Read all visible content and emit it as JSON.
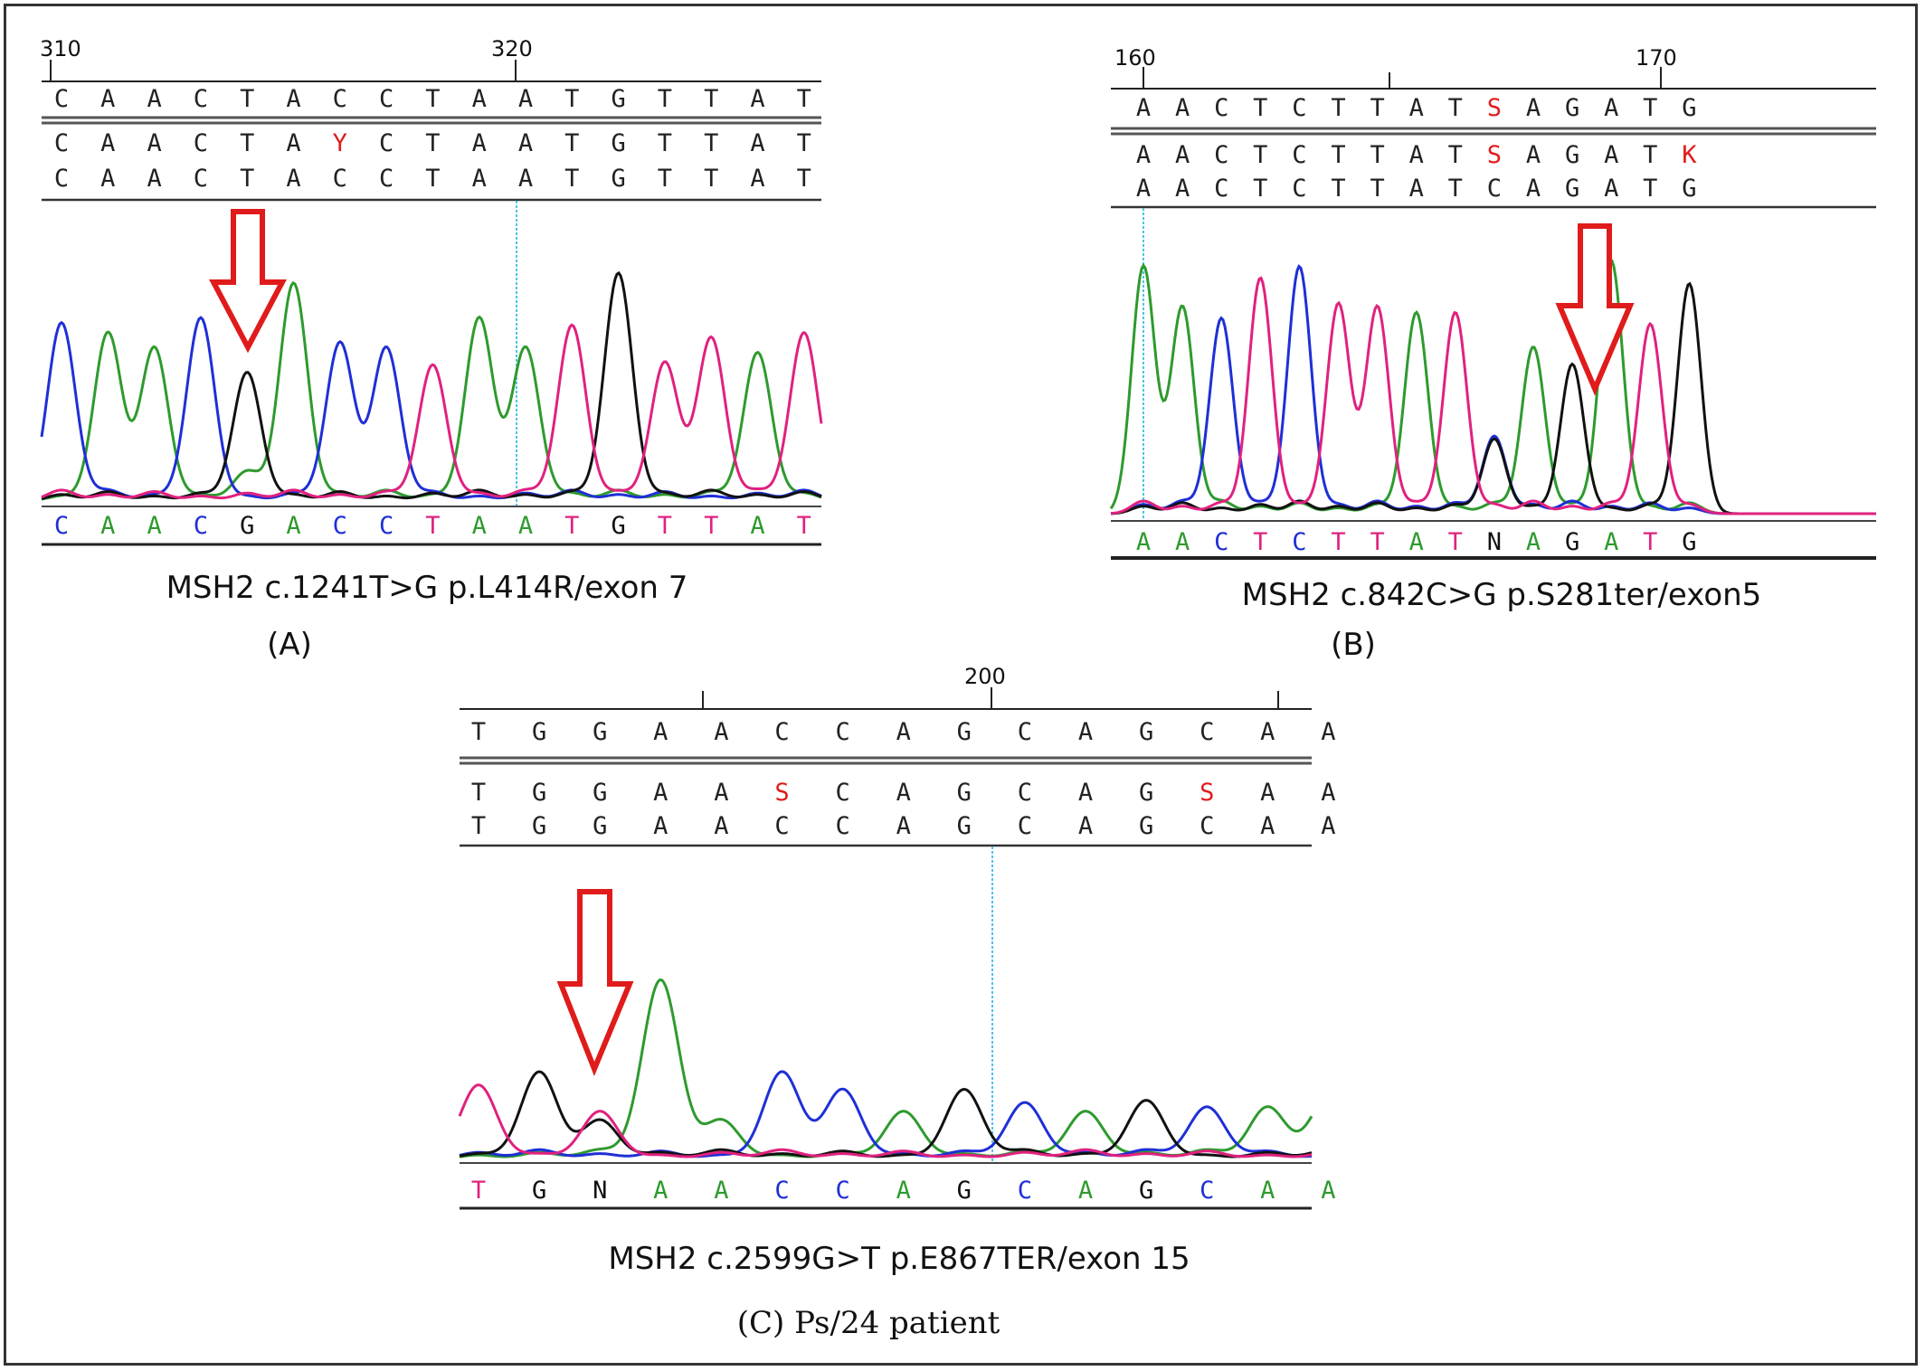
{
  "colors": {
    "A": "#2e9a2e",
    "C": "#1f2fd6",
    "G": "#111111",
    "T": "#e0217f",
    "N": "#111111",
    "highlight": "#e01b1b",
    "cursor": "#4fc3e8",
    "arrow": "#e01b1b"
  },
  "panels": [
    {
      "id": "A",
      "ticks": [
        {
          "label": "310"
        },
        {
          "label": "320"
        }
      ],
      "reference": [
        "C",
        "A",
        "A",
        "C",
        "T",
        "A",
        "C",
        "C",
        "T",
        "A",
        "A",
        "T",
        "G",
        "T",
        "T",
        "A",
        "T"
      ],
      "consensus": [
        "C",
        "A",
        "A",
        "C",
        "T",
        "A",
        "Y",
        "C",
        "T",
        "A",
        "A",
        "T",
        "G",
        "T",
        "T",
        "A",
        "T"
      ],
      "read": [
        "C",
        "A",
        "A",
        "C",
        "T",
        "A",
        "C",
        "C",
        "T",
        "A",
        "A",
        "T",
        "G",
        "T",
        "T",
        "A",
        "T"
      ],
      "basecalls": [
        "C",
        "A",
        "A",
        "C",
        "G",
        "A",
        "C",
        "C",
        "T",
        "A",
        "A",
        "T",
        "G",
        "T",
        "T",
        "A",
        "T"
      ],
      "caption": "MSH2 c.1241T>G p.L414R/exon 7",
      "label": "(A)"
    },
    {
      "id": "B",
      "ticks": [
        {
          "label": "160"
        },
        {
          "label": "170"
        }
      ],
      "reference": [
        "A",
        "A",
        "C",
        "T",
        "C",
        "T",
        "T",
        "A",
        "T",
        "S",
        "A",
        "G",
        "A",
        "T",
        "G"
      ],
      "consensus": [
        "A",
        "A",
        "C",
        "T",
        "C",
        "T",
        "T",
        "A",
        "T",
        "S",
        "A",
        "G",
        "A",
        "T",
        "K"
      ],
      "read": [
        "A",
        "A",
        "C",
        "T",
        "C",
        "T",
        "T",
        "A",
        "T",
        "C",
        "A",
        "G",
        "A",
        "T",
        "G"
      ],
      "basecalls": [
        "A",
        "A",
        "C",
        "T",
        "C",
        "T",
        "T",
        "A",
        "T",
        "N",
        "A",
        "G",
        "A",
        "T",
        "G"
      ],
      "caption": "MSH2 c.842C>G p.S281ter/exon5",
      "label": "(B)"
    },
    {
      "id": "C",
      "ticks": [
        {
          "label": "200"
        }
      ],
      "reference": [
        "T",
        "G",
        "G",
        "A",
        "A",
        "C",
        "C",
        "A",
        "G",
        "C",
        "A",
        "G",
        "C",
        "A",
        "A"
      ],
      "consensus": [
        "T",
        "G",
        "G",
        "A",
        "A",
        "S",
        "C",
        "A",
        "G",
        "C",
        "A",
        "G",
        "S",
        "A",
        "A"
      ],
      "read": [
        "T",
        "G",
        "G",
        "A",
        "A",
        "C",
        "C",
        "A",
        "G",
        "C",
        "A",
        "G",
        "C",
        "A",
        "A"
      ],
      "basecalls": [
        "T",
        "G",
        "N",
        "A",
        "A",
        "C",
        "C",
        "A",
        "G",
        "C",
        "A",
        "G",
        "C",
        "A",
        "A"
      ],
      "caption": "MSH2 c.2599G>T p.E867TER/exon 15",
      "label": "(C) Ps/24 patient"
    }
  ]
}
